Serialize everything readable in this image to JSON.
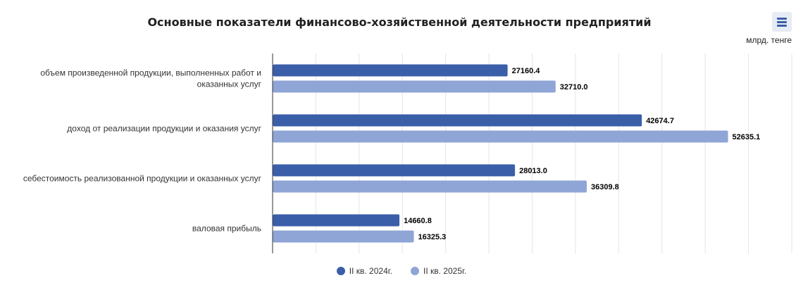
{
  "chart_data": {
    "type": "bar",
    "orientation": "horizontal",
    "title": "Основные показатели финансово-хозяйственной деятельности предприятий",
    "unit_label": "млрд. тенге",
    "categories": [
      [
        "объем произведенной продукции, выполненных работ и",
        "оказанных услуг"
      ],
      [
        "доход от реализации продукции и оказания услуг"
      ],
      [
        "себестоимость реализованной продукции и оказанных услуг"
      ],
      [
        "валовая прибыль"
      ]
    ],
    "series": [
      {
        "name": "II кв. 2024г.",
        "color": "#3b5ea9",
        "values": [
          27160.4,
          42674.7,
          28013.0,
          14660.8
        ],
        "labels": [
          "27160.4",
          "42674.7",
          "28013.0",
          "14660.8"
        ]
      },
      {
        "name": "II кв. 2025г.",
        "color": "#8fa5d6",
        "values": [
          32710.0,
          52635.1,
          36309.8,
          16325.3
        ],
        "labels": [
          "32710.0",
          "52635.1",
          "36309.8",
          "16325.3"
        ]
      }
    ],
    "xlim": [
      0,
      60000
    ],
    "grid": true,
    "legend_position": "bottom"
  }
}
